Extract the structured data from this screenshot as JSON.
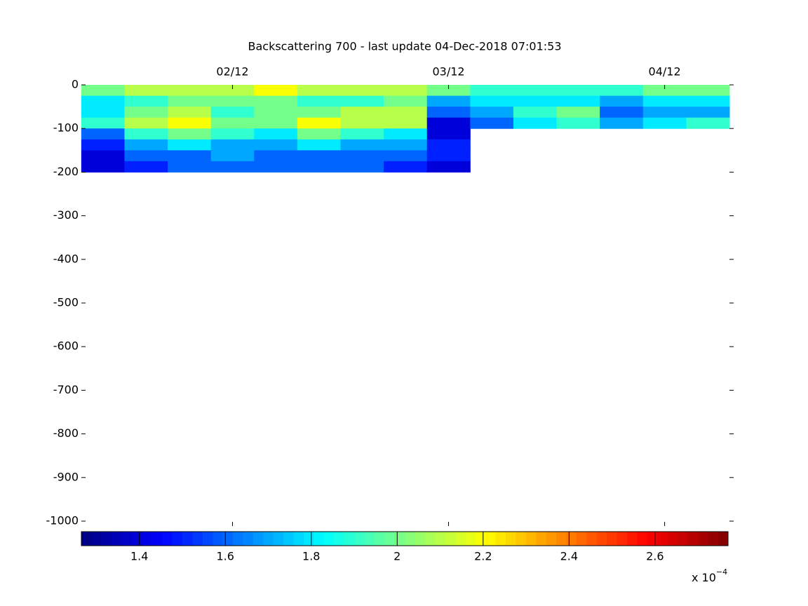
{
  "chart_data": {
    "type": "heatmap",
    "title": "Backscattering 700 - last update 04-Dec-2018 07:01:53",
    "x": [
      1.4,
      1.6,
      1.8,
      2.0,
      2.2,
      2.4,
      2.6,
      2.8,
      3.0,
      3.2,
      3.4,
      3.6,
      3.8,
      4.0,
      4.2
    ],
    "y": [
      -12.5,
      -37.5,
      -62.5,
      -87.5,
      -112.5,
      -137.5,
      -162.5,
      -187.5
    ],
    "values": [
      [
        2.0,
        2.1,
        2.1,
        2.1,
        2.2,
        2.1,
        2.1,
        2.1,
        2.0,
        1.9,
        1.9,
        1.9,
        1.9,
        2.0,
        2.0
      ],
      [
        1.8,
        1.9,
        2.0,
        2.0,
        2.0,
        1.9,
        1.9,
        2.0,
        1.7,
        1.8,
        1.8,
        1.8,
        1.7,
        1.8,
        1.8
      ],
      [
        1.8,
        2.0,
        2.1,
        1.9,
        2.0,
        2.0,
        2.1,
        2.1,
        1.6,
        1.7,
        1.9,
        2.0,
        1.6,
        1.7,
        1.7
      ],
      [
        1.9,
        2.1,
        2.2,
        2.0,
        2.0,
        2.2,
        2.1,
        2.1,
        1.4,
        1.6,
        1.8,
        1.9,
        1.7,
        1.8,
        1.9
      ],
      [
        1.6,
        1.9,
        2.0,
        1.9,
        1.8,
        2.0,
        1.9,
        1.8,
        1.4,
        null,
        null,
        null,
        null,
        null,
        null
      ],
      [
        1.5,
        1.7,
        1.8,
        1.7,
        1.7,
        1.8,
        1.7,
        1.7,
        1.5,
        null,
        null,
        null,
        null,
        null,
        null
      ],
      [
        1.4,
        1.6,
        1.6,
        1.7,
        1.6,
        1.6,
        1.6,
        1.6,
        1.5,
        null,
        null,
        null,
        null,
        null,
        null
      ],
      [
        1.4,
        1.5,
        1.6,
        1.6,
        1.6,
        1.6,
        1.6,
        1.5,
        1.4,
        null,
        null,
        null,
        null,
        null,
        null
      ]
    ],
    "xlim": [
      1.32,
      4.3
    ],
    "xticks": [
      {
        "value": 2,
        "label": "02/12"
      },
      {
        "value": 3,
        "label": "03/12"
      },
      {
        "value": 4,
        "label": "04/12"
      }
    ],
    "ylim": [
      -1000,
      0
    ],
    "yticks": [
      0,
      -100,
      -200,
      -300,
      -400,
      -500,
      -600,
      -700,
      -800,
      -900,
      -1000
    ],
    "clim": [
      1.265,
      2.77
    ],
    "cticks": [
      1.4,
      1.6,
      1.8,
      2,
      2.2,
      2.4,
      2.6
    ],
    "colorbar_exponent_label": "x 10",
    "colorbar_exponent": "−4",
    "colormap": "jet"
  }
}
